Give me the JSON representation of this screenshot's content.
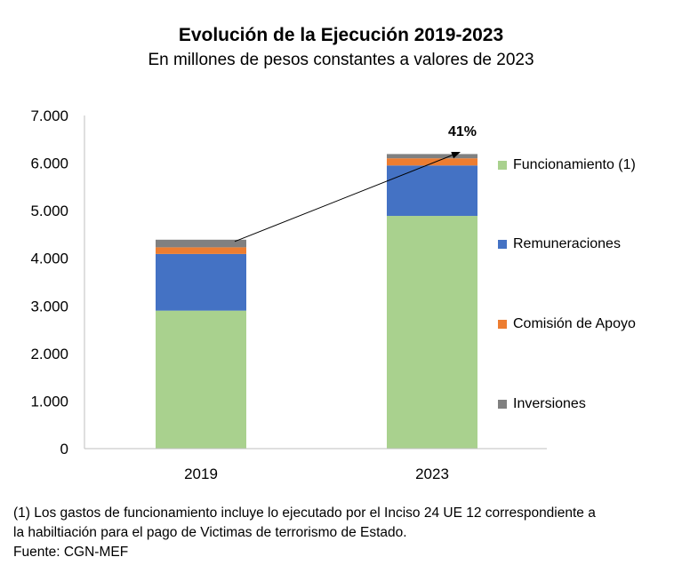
{
  "chart_data": {
    "type": "bar",
    "stacked": true,
    "title": "Evolución de la Ejecución 2019-2023",
    "subtitle": "En millones de pesos constantes a valores de 2023",
    "categories": [
      "2019",
      "2023"
    ],
    "series": [
      {
        "name": "Funcionamiento (1)",
        "color": "#a9d18e",
        "values": [
          2900,
          4890
        ]
      },
      {
        "name": "Remuneraciones",
        "color": "#4472c4",
        "values": [
          1190,
          1060
        ]
      },
      {
        "name": "Comisión de Apoyo",
        "color": "#ed7d31",
        "values": [
          140,
          150
        ]
      },
      {
        "name": "Inversiones",
        "color": "#808080",
        "values": [
          160,
          90
        ]
      }
    ],
    "ylim": [
      0,
      7000
    ],
    "yticks": [
      0,
      1000,
      2000,
      3000,
      4000,
      5000,
      6000,
      7000
    ],
    "ytick_labels": [
      "0",
      "1.000",
      "2.000",
      "3.000",
      "4.000",
      "5.000",
      "6.000",
      "7.000"
    ],
    "grid": false,
    "legend_position": "right",
    "annotation": "41%",
    "footnotes": [
      "(1) Los gastos de funcionamiento incluye lo ejecutado por el Inciso 24 UE 12 correspondiente a",
      "la habiltiación para el pago de Victimas de terrorismo de Estado.",
      "Fuente: CGN-MEF"
    ]
  }
}
